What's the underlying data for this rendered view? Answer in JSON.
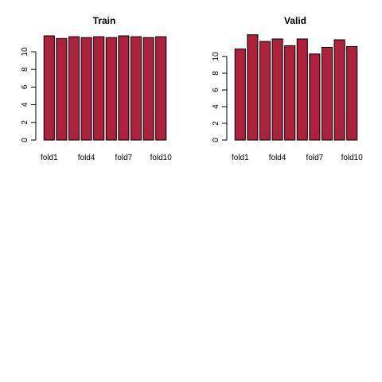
{
  "colors": {
    "bar": "#AD213D",
    "bar_outline": "#000000"
  },
  "chart_data": [
    {
      "type": "bar",
      "title": "Train",
      "categories": [
        "fold1",
        "fold2",
        "fold3",
        "fold4",
        "fold5",
        "fold6",
        "fold7",
        "fold8",
        "fold9",
        "fold10"
      ],
      "category_labels_shown": [
        "fold1",
        "",
        "",
        "fold4",
        "",
        "",
        "fold7",
        "",
        "",
        "fold10"
      ],
      "values": [
        11.8,
        11.5,
        11.7,
        11.6,
        11.7,
        11.6,
        11.8,
        11.7,
        11.6,
        11.7
      ],
      "y_ticks": [
        "0",
        "2",
        "4",
        "6",
        "8",
        "10"
      ],
      "ylim": [
        0,
        12
      ],
      "xlabel": "",
      "ylabel": ""
    },
    {
      "type": "bar",
      "title": "Valid",
      "categories": [
        "fold1",
        "fold2",
        "fold3",
        "fold4",
        "fold5",
        "fold6",
        "fold7",
        "fold8",
        "fold9",
        "fold10"
      ],
      "category_labels_shown": [
        "fold1",
        "",
        "",
        "fold4",
        "",
        "",
        "fold7",
        "",
        "",
        "fold10"
      ],
      "values": [
        10.9,
        12.6,
        11.8,
        12.1,
        11.3,
        12.1,
        10.3,
        11.1,
        12.0,
        11.2
      ],
      "y_ticks": [
        "0",
        "2",
        "4",
        "6",
        "8",
        "10"
      ],
      "ylim": [
        0,
        12.6
      ],
      "xlabel": "",
      "ylabel": ""
    }
  ]
}
